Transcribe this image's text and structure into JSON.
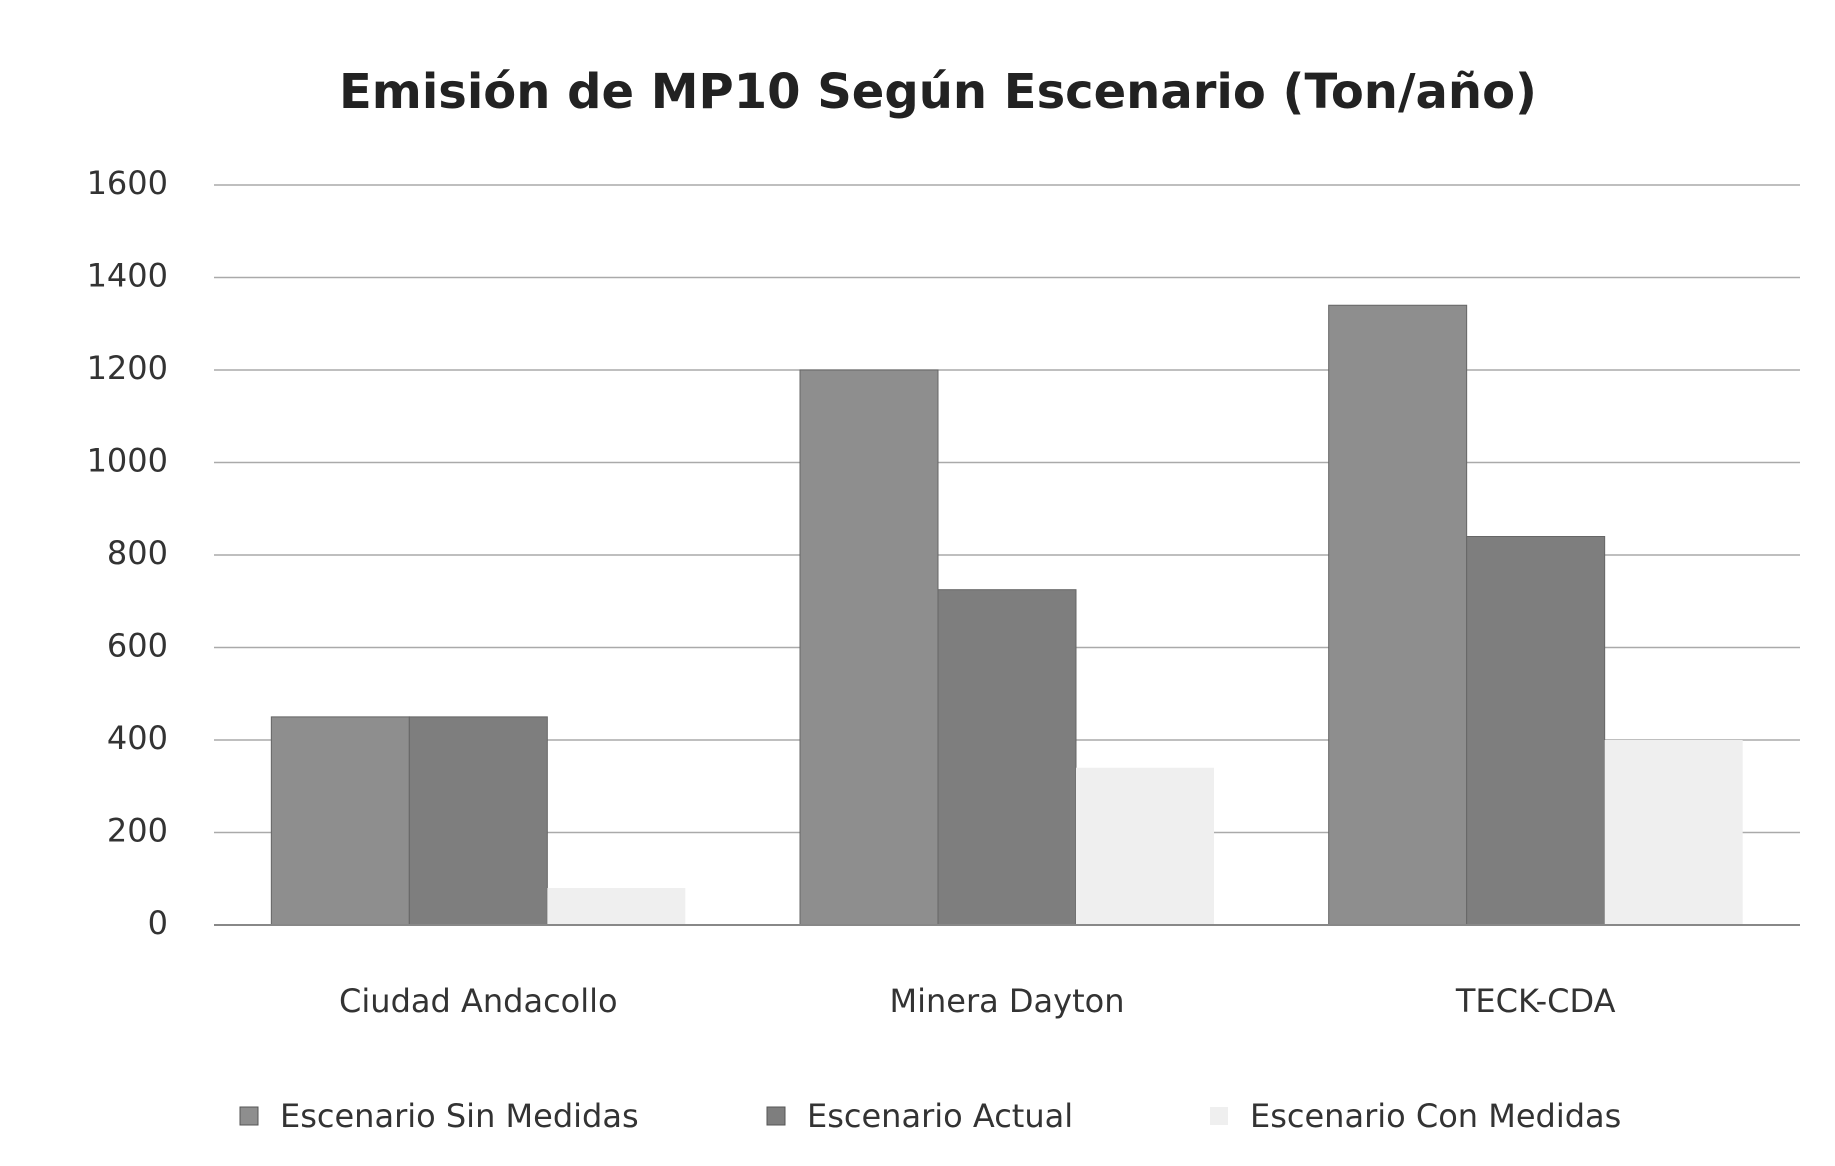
{
  "chart_data": {
    "type": "bar",
    "title": "Emisión de MP10 Según Escenario (Ton/año)",
    "categories": [
      "Ciudad Andacollo",
      "Minera Dayton",
      "TECK-CDA"
    ],
    "series": [
      {
        "name": "Escenario Sin Medidas",
        "color": "#8e8e8e",
        "values": [
          450,
          1200,
          1340
        ]
      },
      {
        "name": "Escenario Actual",
        "color": "#7e7e7e",
        "values": [
          450,
          725,
          840
        ]
      },
      {
        "name": "Escenario Con Medidas",
        "color": "#efefef",
        "values": [
          80,
          340,
          400
        ]
      }
    ],
    "ylim": [
      0,
      1600
    ],
    "yticks": [
      0,
      200,
      400,
      600,
      800,
      1000,
      1200,
      1400,
      1600
    ],
    "grid": true,
    "legend": "bottom"
  }
}
